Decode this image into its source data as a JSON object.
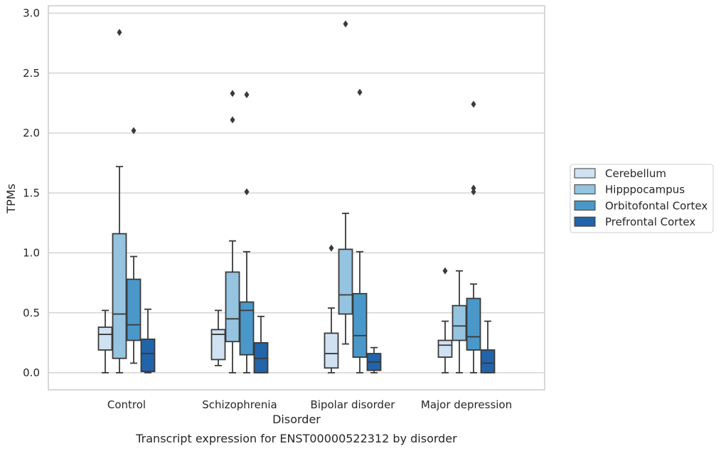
{
  "chart_data": {
    "type": "box",
    "xlabel": "Disorder",
    "ylabel": "TPMs",
    "ylim": [
      -0.14,
      3.08
    ],
    "yticks": [
      "0.0",
      "0.5",
      "1.0",
      "1.5",
      "2.0",
      "2.5",
      "3.0"
    ],
    "categories": [
      "Control",
      "Schizophrenia",
      "Bipolar disorder",
      "Major depression"
    ],
    "grid": true,
    "legend_position": "right",
    "caption": "Transcript expression for ENST00000522312 by disorder",
    "series": [
      {
        "name": "Cerebellum",
        "color": "#d0e1f2",
        "boxes": [
          {
            "whisker_low": 0.0,
            "q1": 0.19,
            "median": 0.32,
            "q3": 0.38,
            "whisker_high": 0.52,
            "outliers": []
          },
          {
            "whisker_low": 0.06,
            "q1": 0.11,
            "median": 0.32,
            "q3": 0.36,
            "whisker_high": 0.52,
            "outliers": []
          },
          {
            "whisker_low": 0.0,
            "q1": 0.04,
            "median": 0.16,
            "q3": 0.33,
            "whisker_high": 0.54,
            "outliers": [
              1.04
            ]
          },
          {
            "whisker_low": 0.0,
            "q1": 0.13,
            "median": 0.23,
            "q3": 0.27,
            "whisker_high": 0.43,
            "outliers": [
              0.85
            ]
          }
        ]
      },
      {
        "name": "Hipppocampus",
        "color": "#94c4df",
        "boxes": [
          {
            "whisker_low": 0.0,
            "q1": 0.12,
            "median": 0.49,
            "q3": 1.16,
            "whisker_high": 1.72,
            "outliers": [
              2.84
            ]
          },
          {
            "whisker_low": 0.0,
            "q1": 0.26,
            "median": 0.45,
            "q3": 0.84,
            "whisker_high": 1.1,
            "outliers": [
              2.11,
              2.33
            ]
          },
          {
            "whisker_low": 0.24,
            "q1": 0.49,
            "median": 0.65,
            "q3": 1.03,
            "whisker_high": 1.33,
            "outliers": [
              2.91
            ]
          },
          {
            "whisker_low": 0.0,
            "q1": 0.27,
            "median": 0.39,
            "q3": 0.56,
            "whisker_high": 0.85,
            "outliers": []
          }
        ]
      },
      {
        "name": "Orbitofontal Cortex",
        "color": "#4a98c9",
        "boxes": [
          {
            "whisker_low": 0.08,
            "q1": 0.27,
            "median": 0.4,
            "q3": 0.78,
            "whisker_high": 0.97,
            "outliers": [
              2.02
            ]
          },
          {
            "whisker_low": 0.0,
            "q1": 0.15,
            "median": 0.52,
            "q3": 0.59,
            "whisker_high": 1.01,
            "outliers": [
              1.51,
              2.32
            ]
          },
          {
            "whisker_low": 0.0,
            "q1": 0.13,
            "median": 0.31,
            "q3": 0.66,
            "whisker_high": 1.01,
            "outliers": [
              2.34
            ]
          },
          {
            "whisker_low": 0.0,
            "q1": 0.19,
            "median": 0.3,
            "q3": 0.62,
            "whisker_high": 0.74,
            "outliers": [
              1.51,
              1.54,
              2.24
            ]
          }
        ]
      },
      {
        "name": "Prefrontal Cortex",
        "color": "#2264a9",
        "boxes": [
          {
            "whisker_low": 0.0,
            "q1": 0.01,
            "median": 0.16,
            "q3": 0.28,
            "whisker_high": 0.53,
            "outliers": []
          },
          {
            "whisker_low": 0.0,
            "q1": 0.0,
            "median": 0.12,
            "q3": 0.25,
            "whisker_high": 0.47,
            "outliers": []
          },
          {
            "whisker_low": 0.0,
            "q1": 0.02,
            "median": 0.09,
            "q3": 0.16,
            "whisker_high": 0.21,
            "outliers": []
          },
          {
            "whisker_low": 0.0,
            "q1": 0.0,
            "median": 0.08,
            "q3": 0.19,
            "whisker_high": 0.43,
            "outliers": []
          }
        ]
      }
    ]
  }
}
